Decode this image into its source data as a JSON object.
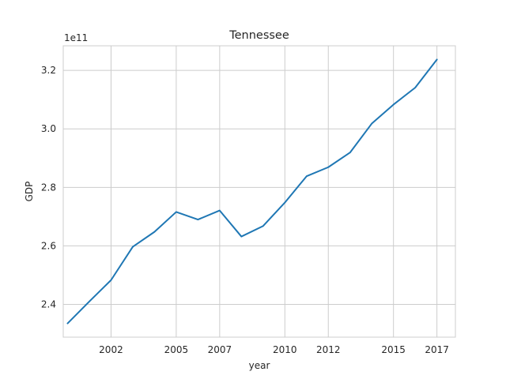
{
  "chart_data": {
    "type": "line",
    "title": "Tennessee",
    "xlabel": "year",
    "ylabel": "GDP",
    "offset_label": "1e11",
    "x": [
      2000,
      2001,
      2002,
      2003,
      2004,
      2005,
      2006,
      2007,
      2008,
      2009,
      2010,
      2011,
      2012,
      2013,
      2014,
      2015,
      2016,
      2017
    ],
    "series": [
      {
        "values": [
          2.335,
          2.41,
          2.483,
          2.597,
          2.648,
          2.716,
          2.69,
          2.721,
          2.632,
          2.668,
          2.748,
          2.838,
          2.869,
          2.919,
          3.018,
          3.083,
          3.141,
          3.237
        ],
        "color": "#1f77b4"
      }
    ],
    "xticks": [
      2002,
      2005,
      2007,
      2010,
      2012,
      2015,
      2017
    ],
    "yticks": [
      "2.4",
      "2.6",
      "2.8",
      "3.0",
      "3.2"
    ],
    "xlim": [
      1999.8,
      2017.85
    ],
    "ylim": [
      2.288,
      3.284
    ],
    "grid": true,
    "legend": false
  }
}
